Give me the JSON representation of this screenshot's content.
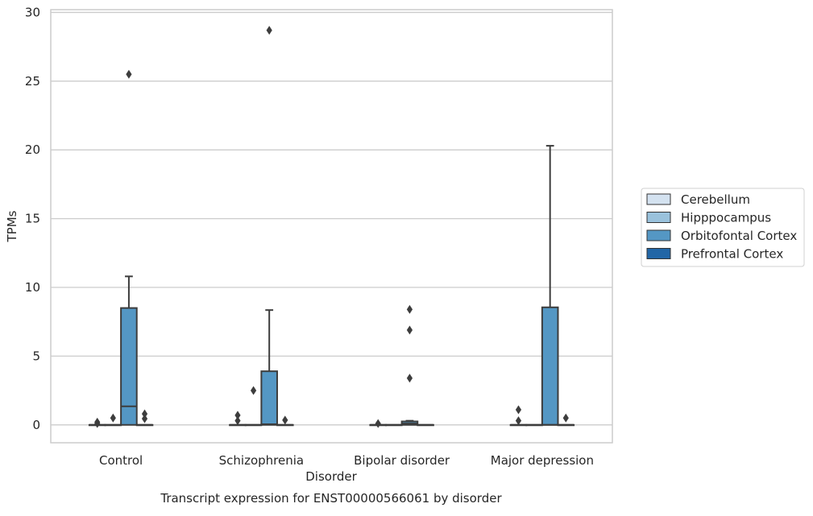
{
  "chart_data": {
    "type": "box",
    "title": "",
    "caption": "Transcript expression for ENST00000566061 by disorder",
    "xlabel": "Disorder",
    "ylabel": "TPMs",
    "ylim": [
      -1.3,
      30.2
    ],
    "yticks": [
      0,
      5,
      10,
      15,
      20,
      25,
      30
    ],
    "grid": "horizontal",
    "legend_position": "right",
    "categories": [
      "Control",
      "Schizophrenia",
      "Bipolar disorder",
      "Major depression"
    ],
    "series": [
      {
        "name": "Cerebellum",
        "color": "#d4e2f0",
        "boxes": [
          {
            "q1": 0,
            "median": 0,
            "q3": 0,
            "whisker_low": 0,
            "whisker_high": 0,
            "outliers": [
              0.2,
              0.1
            ]
          },
          {
            "q1": 0,
            "median": 0,
            "q3": 0,
            "whisker_low": 0,
            "whisker_high": 0,
            "outliers": [
              0.7,
              0.3
            ]
          },
          {
            "q1": 0,
            "median": 0,
            "q3": 0,
            "whisker_low": 0,
            "whisker_high": 0,
            "outliers": [
              0.1
            ]
          },
          {
            "q1": 0,
            "median": 0,
            "q3": 0,
            "whisker_low": 0,
            "whisker_high": 0,
            "outliers": [
              1.1,
              0.3
            ]
          }
        ]
      },
      {
        "name": "Hipppocampus",
        "color": "#9ac2dc",
        "boxes": [
          {
            "q1": 0,
            "median": 0,
            "q3": 0,
            "whisker_low": 0,
            "whisker_high": 0,
            "outliers": [
              0.5
            ]
          },
          {
            "q1": 0,
            "median": 0,
            "q3": 0,
            "whisker_low": 0,
            "whisker_high": 0,
            "outliers": [
              2.5
            ]
          },
          {
            "q1": 0,
            "median": 0,
            "q3": 0,
            "whisker_low": 0,
            "whisker_high": 0,
            "outliers": []
          },
          {
            "q1": 0,
            "median": 0,
            "q3": 0,
            "whisker_low": 0,
            "whisker_high": 0,
            "outliers": []
          }
        ]
      },
      {
        "name": "Orbitofontal Cortex",
        "color": "#5497c4",
        "boxes": [
          {
            "q1": 0,
            "median": 1.35,
            "q3": 8.5,
            "whisker_low": 0,
            "whisker_high": 10.8,
            "outliers": [
              25.5
            ]
          },
          {
            "q1": 0,
            "median": 0.05,
            "q3": 3.9,
            "whisker_low": 0,
            "whisker_high": 8.35,
            "outliers": [
              28.7
            ]
          },
          {
            "q1": 0,
            "median": 0.1,
            "q3": 0.25,
            "whisker_low": 0,
            "whisker_high": 0.3,
            "outliers": [
              8.4,
              6.9,
              3.4
            ]
          },
          {
            "q1": 0,
            "median": 0,
            "q3": 8.55,
            "whisker_low": 0,
            "whisker_high": 20.3,
            "outliers": []
          }
        ]
      },
      {
        "name": "Prefrontal Cortex",
        "color": "#2266a6",
        "boxes": [
          {
            "q1": 0,
            "median": 0,
            "q3": 0,
            "whisker_low": 0,
            "whisker_high": 0,
            "outliers": [
              0.8,
              0.45
            ]
          },
          {
            "q1": 0,
            "median": 0,
            "q3": 0,
            "whisker_low": 0,
            "whisker_high": 0,
            "outliers": [
              0.35
            ]
          },
          {
            "q1": 0,
            "median": 0,
            "q3": 0,
            "whisker_low": 0,
            "whisker_high": 0,
            "outliers": []
          },
          {
            "q1": 0,
            "median": 0,
            "q3": 0,
            "whisker_low": 0,
            "whisker_high": 0,
            "outliers": [
              0.5
            ]
          }
        ]
      }
    ]
  }
}
